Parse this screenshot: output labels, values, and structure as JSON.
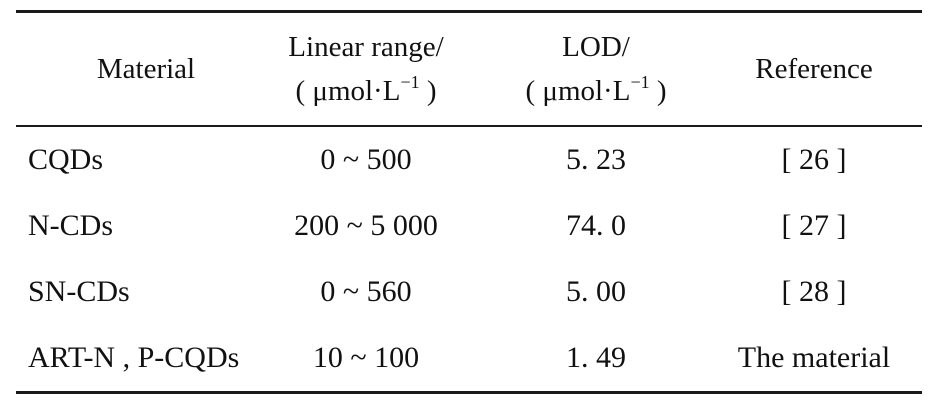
{
  "table": {
    "headers": {
      "material": "Material",
      "linear_range_line1": "Linear range/",
      "linear_range_unit_base": "( μmol·L",
      "linear_range_unit_exp": "−1",
      "linear_range_unit_close": " )",
      "lod_line1": "LOD/",
      "lod_unit_base": "( μmol·L",
      "lod_unit_exp": "−1",
      "lod_unit_close": " )",
      "reference": "Reference"
    },
    "rows": [
      {
        "material": "CQDs",
        "linear_range": "0 ~ 500",
        "lod": "5. 23",
        "reference": "[ 26 ]"
      },
      {
        "material": "N-CDs",
        "linear_range": "200 ~ 5 000",
        "lod": "74. 0",
        "reference": "[ 27 ]"
      },
      {
        "material": "SN-CDs",
        "linear_range": "0 ~ 560",
        "lod": "5. 00",
        "reference": "[ 28 ]"
      },
      {
        "material": "ART-N , P-CQDs",
        "linear_range": "10 ~ 100",
        "lod": "1. 49",
        "reference": "The material"
      }
    ]
  }
}
